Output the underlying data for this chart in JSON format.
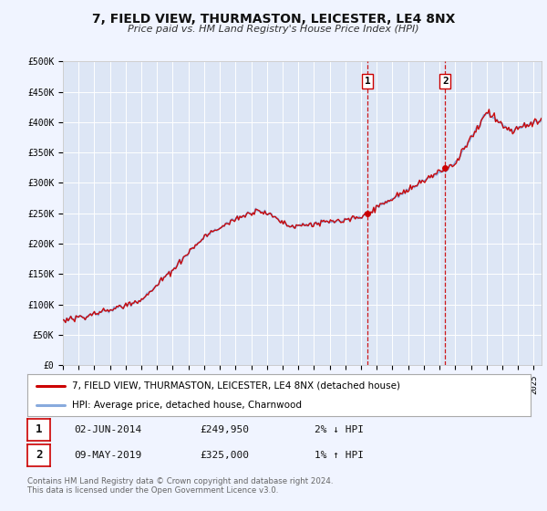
{
  "title": "7, FIELD VIEW, THURMASTON, LEICESTER, LE4 8NX",
  "subtitle": "Price paid vs. HM Land Registry's House Price Index (HPI)",
  "legend_label_red": "7, FIELD VIEW, THURMASTON, LEICESTER, LE4 8NX (detached house)",
  "legend_label_blue": "HPI: Average price, detached house, Charnwood",
  "annotation1_label": "1",
  "annotation1_date": "02-JUN-2014",
  "annotation1_price": "£249,950",
  "annotation1_pct": "2% ↓ HPI",
  "annotation2_label": "2",
  "annotation2_date": "09-MAY-2019",
  "annotation2_price": "£325,000",
  "annotation2_pct": "1% ↑ HPI",
  "footer1": "Contains HM Land Registry data © Crown copyright and database right 2024.",
  "footer2": "This data is licensed under the Open Government Licence v3.0.",
  "xmin": 1995.0,
  "xmax": 2025.5,
  "ymin": 0,
  "ymax": 500000,
  "yticks": [
    0,
    50000,
    100000,
    150000,
    200000,
    250000,
    300000,
    350000,
    400000,
    450000,
    500000
  ],
  "ytick_labels": [
    "£0",
    "£50K",
    "£100K",
    "£150K",
    "£200K",
    "£250K",
    "£300K",
    "£350K",
    "£400K",
    "£450K",
    "£500K"
  ],
  "xticks": [
    1995,
    1996,
    1997,
    1998,
    1999,
    2000,
    2001,
    2002,
    2003,
    2004,
    2005,
    2006,
    2007,
    2008,
    2009,
    2010,
    2011,
    2012,
    2013,
    2014,
    2015,
    2016,
    2017,
    2018,
    2019,
    2020,
    2021,
    2022,
    2023,
    2024,
    2025
  ],
  "vline1_x": 2014.42,
  "vline2_x": 2019.36,
  "sale1_x": 2014.42,
  "sale1_y": 249950,
  "sale2_x": 2019.36,
  "sale2_y": 325000,
  "background_color": "#f0f4ff",
  "plot_bg_color": "#dde6f5",
  "grid_color": "#ffffff",
  "red_color": "#cc0000",
  "blue_color": "#88aadd",
  "vline_color": "#cc0000"
}
